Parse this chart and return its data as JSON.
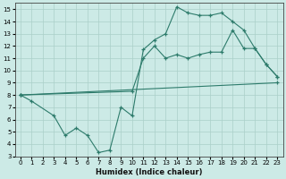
{
  "xlabel": "Humidex (Indice chaleur)",
  "xlim": [
    -0.5,
    23.5
  ],
  "ylim": [
    3,
    15.5
  ],
  "xticks": [
    0,
    1,
    2,
    3,
    4,
    5,
    6,
    7,
    8,
    9,
    10,
    11,
    12,
    13,
    14,
    15,
    16,
    17,
    18,
    19,
    20,
    21,
    22,
    23
  ],
  "yticks": [
    3,
    4,
    5,
    6,
    7,
    8,
    9,
    10,
    11,
    12,
    13,
    14,
    15
  ],
  "line_color": "#2d7b6b",
  "bg_color": "#cceae6",
  "grid_color": "#aacfc9",
  "line1": {
    "x": [
      0,
      1,
      3,
      4,
      5,
      6,
      7,
      8,
      9,
      10,
      11,
      12,
      13,
      14,
      15,
      16,
      17,
      18,
      19,
      20,
      21,
      22,
      23
    ],
    "y": [
      8,
      7.5,
      6.3,
      4.7,
      5.3,
      4.7,
      3.3,
      3.5,
      7.0,
      6.3,
      11.7,
      12.5,
      13.0,
      15.2,
      14.7,
      14.5,
      14.5,
      14.7,
      14.0,
      13.3,
      11.8,
      10.5,
      9.5
    ]
  },
  "line2": {
    "x": [
      0,
      10,
      11,
      12,
      13,
      14,
      15,
      16,
      17,
      18,
      19,
      20,
      21,
      22,
      23
    ],
    "y": [
      8,
      8.3,
      11.0,
      12.0,
      11.0,
      11.3,
      11.0,
      11.3,
      11.5,
      11.5,
      13.3,
      11.8,
      11.8,
      10.5,
      9.5
    ]
  },
  "line3": {
    "x": [
      0,
      23
    ],
    "y": [
      8,
      9.0
    ]
  }
}
